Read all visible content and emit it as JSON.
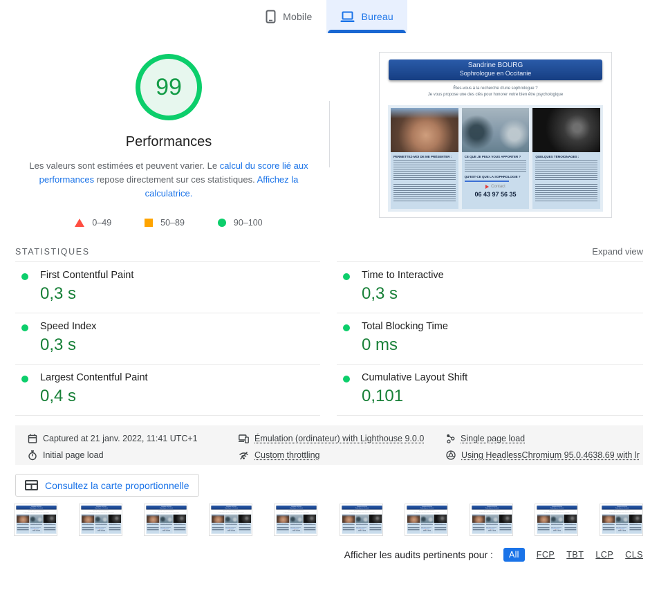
{
  "tabs": {
    "mobile": "Mobile",
    "desktop": "Bureau"
  },
  "summary": {
    "score": "99",
    "category": "Performances",
    "description": {
      "text1": "Les valeurs sont estimées et peuvent varier. Le ",
      "link1": "calcul du score lié aux performances",
      "text2": " repose directement sur ces statistiques. ",
      "link2": "Affichez la calculatrice."
    },
    "legend": [
      {
        "range": "0–49"
      },
      {
        "range": "50–89"
      },
      {
        "range": "90–100"
      }
    ]
  },
  "site_preview": {
    "banner_line1": "Sandrine BOURG",
    "banner_line2": "Sophrologue en Occitanie",
    "intro_line1": "Êtes-vous à la recherche d'une sophrologue ?",
    "intro_line2": "Je vous propose une des clés pour honorer votre bien être psychologique",
    "col1_title": "PERMETTEZ-MOI DE ME PRÉSENTER :",
    "col2_title": "CE QUE JE PEUX VOUS APPORTER ?",
    "col2_subtitle": "QU'EST-CE QUE LA SOPHROLOGIE ?",
    "col3_title": "QUELQUES TÉMOIGNAGES :",
    "contact_label": "Contact",
    "phone": "06 43 97 56 35"
  },
  "stats": {
    "section_title": "STATISTIQUES",
    "expand_label": "Expand view",
    "metrics": [
      {
        "label": "First Contentful Paint",
        "value": "0,3 s"
      },
      {
        "label": "Time to Interactive",
        "value": "0,3 s"
      },
      {
        "label": "Speed Index",
        "value": "0,3 s"
      },
      {
        "label": "Total Blocking Time",
        "value": "0 ms"
      },
      {
        "label": "Largest Contentful Paint",
        "value": "0,4 s"
      },
      {
        "label": "Cumulative Layout Shift",
        "value": "0,101"
      }
    ]
  },
  "env": {
    "captured": "Captured at 21 janv. 2022, 11:41 UTC+1",
    "initial_load": "Initial page load",
    "emulation": "Émulation (ordinateur) with Lighthouse 9.0.0",
    "throttling": "Custom throttling",
    "page_load": "Single page load",
    "chromium": "Using HeadlessChromium 95.0.4638.69 with lr"
  },
  "treemap_button": "Consultez la carte proportionnelle",
  "filmstrip": {
    "frames": 10
  },
  "filters": {
    "label": "Afficher les audits pertinents pour :",
    "active": "All",
    "options": [
      "FCP",
      "TBT",
      "LCP",
      "CLS"
    ]
  },
  "colors": {
    "accent_blue": "#1a73e8",
    "pass_green": "#0cce6b",
    "value_green": "#188038",
    "average_orange": "#ffa400",
    "fail_red": "#ff4e42"
  }
}
